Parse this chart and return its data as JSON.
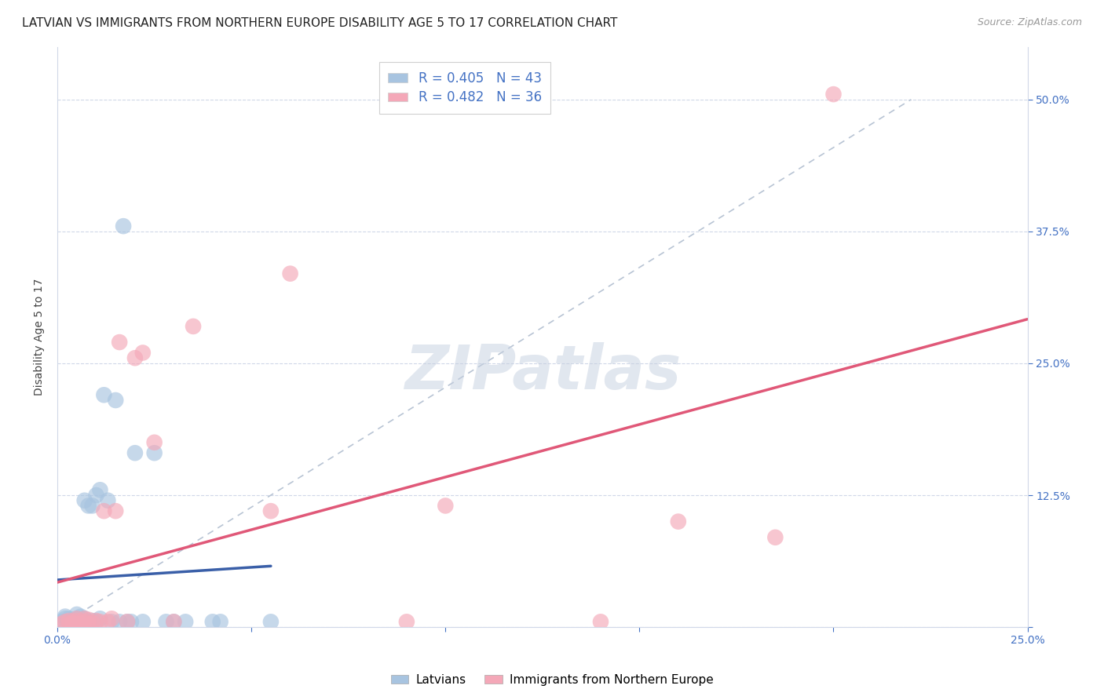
{
  "title": "LATVIAN VS IMMIGRANTS FROM NORTHERN EUROPE DISABILITY AGE 5 TO 17 CORRELATION CHART",
  "source": "Source: ZipAtlas.com",
  "ylabel": "Disability Age 5 to 17",
  "xlim": [
    0.0,
    0.25
  ],
  "ylim": [
    0.0,
    0.55
  ],
  "xticks": [
    0.0,
    0.05,
    0.1,
    0.15,
    0.2,
    0.25
  ],
  "xticklabels": [
    "0.0%",
    "",
    "",
    "",
    "",
    "25.0%"
  ],
  "yticks_right": [
    0.0,
    0.125,
    0.25,
    0.375,
    0.5
  ],
  "ytick_labels_right": [
    "",
    "12.5%",
    "25.0%",
    "37.5%",
    "50.0%"
  ],
  "latvian_color": "#a8c4e0",
  "immigrant_color": "#f4a8b8",
  "latvian_line_color": "#3a5fa8",
  "immigrant_line_color": "#e05878",
  "dashed_line_color": "#b8c4d4",
  "R_latvian": 0.405,
  "N_latvian": 43,
  "R_immigrant": 0.482,
  "N_immigrant": 36,
  "latvian_scatter_x": [
    0.001,
    0.002,
    0.002,
    0.003,
    0.003,
    0.004,
    0.004,
    0.004,
    0.005,
    0.005,
    0.005,
    0.005,
    0.006,
    0.006,
    0.006,
    0.007,
    0.007,
    0.007,
    0.008,
    0.008,
    0.009,
    0.009,
    0.01,
    0.01,
    0.011,
    0.011,
    0.012,
    0.013,
    0.014,
    0.015,
    0.016,
    0.017,
    0.018,
    0.019,
    0.02,
    0.022,
    0.025,
    0.028,
    0.03,
    0.033,
    0.04,
    0.042,
    0.055
  ],
  "latvian_scatter_y": [
    0.005,
    0.008,
    0.01,
    0.005,
    0.008,
    0.003,
    0.005,
    0.007,
    0.003,
    0.005,
    0.008,
    0.012,
    0.004,
    0.006,
    0.01,
    0.004,
    0.008,
    0.12,
    0.005,
    0.115,
    0.006,
    0.115,
    0.005,
    0.125,
    0.008,
    0.13,
    0.22,
    0.12,
    0.005,
    0.215,
    0.005,
    0.38,
    0.005,
    0.005,
    0.165,
    0.005,
    0.165,
    0.005,
    0.005,
    0.005,
    0.005,
    0.005,
    0.005
  ],
  "immigrant_scatter_x": [
    0.001,
    0.002,
    0.003,
    0.003,
    0.004,
    0.004,
    0.005,
    0.005,
    0.005,
    0.006,
    0.007,
    0.007,
    0.008,
    0.008,
    0.009,
    0.01,
    0.011,
    0.012,
    0.013,
    0.014,
    0.015,
    0.016,
    0.018,
    0.02,
    0.022,
    0.025,
    0.03,
    0.035,
    0.055,
    0.06,
    0.09,
    0.1,
    0.14,
    0.16,
    0.185,
    0.2
  ],
  "immigrant_scatter_y": [
    0.003,
    0.005,
    0.003,
    0.006,
    0.003,
    0.005,
    0.003,
    0.006,
    0.008,
    0.003,
    0.005,
    0.008,
    0.003,
    0.007,
    0.004,
    0.006,
    0.005,
    0.11,
    0.005,
    0.008,
    0.11,
    0.27,
    0.005,
    0.255,
    0.26,
    0.175,
    0.005,
    0.285,
    0.11,
    0.335,
    0.005,
    0.115,
    0.005,
    0.1,
    0.085,
    0.505
  ],
  "watermark": "ZIPatlas",
  "background_color": "#ffffff",
  "grid_color": "#d0d8e8",
  "title_fontsize": 11,
  "axis_label_fontsize": 10,
  "tick_fontsize": 10
}
